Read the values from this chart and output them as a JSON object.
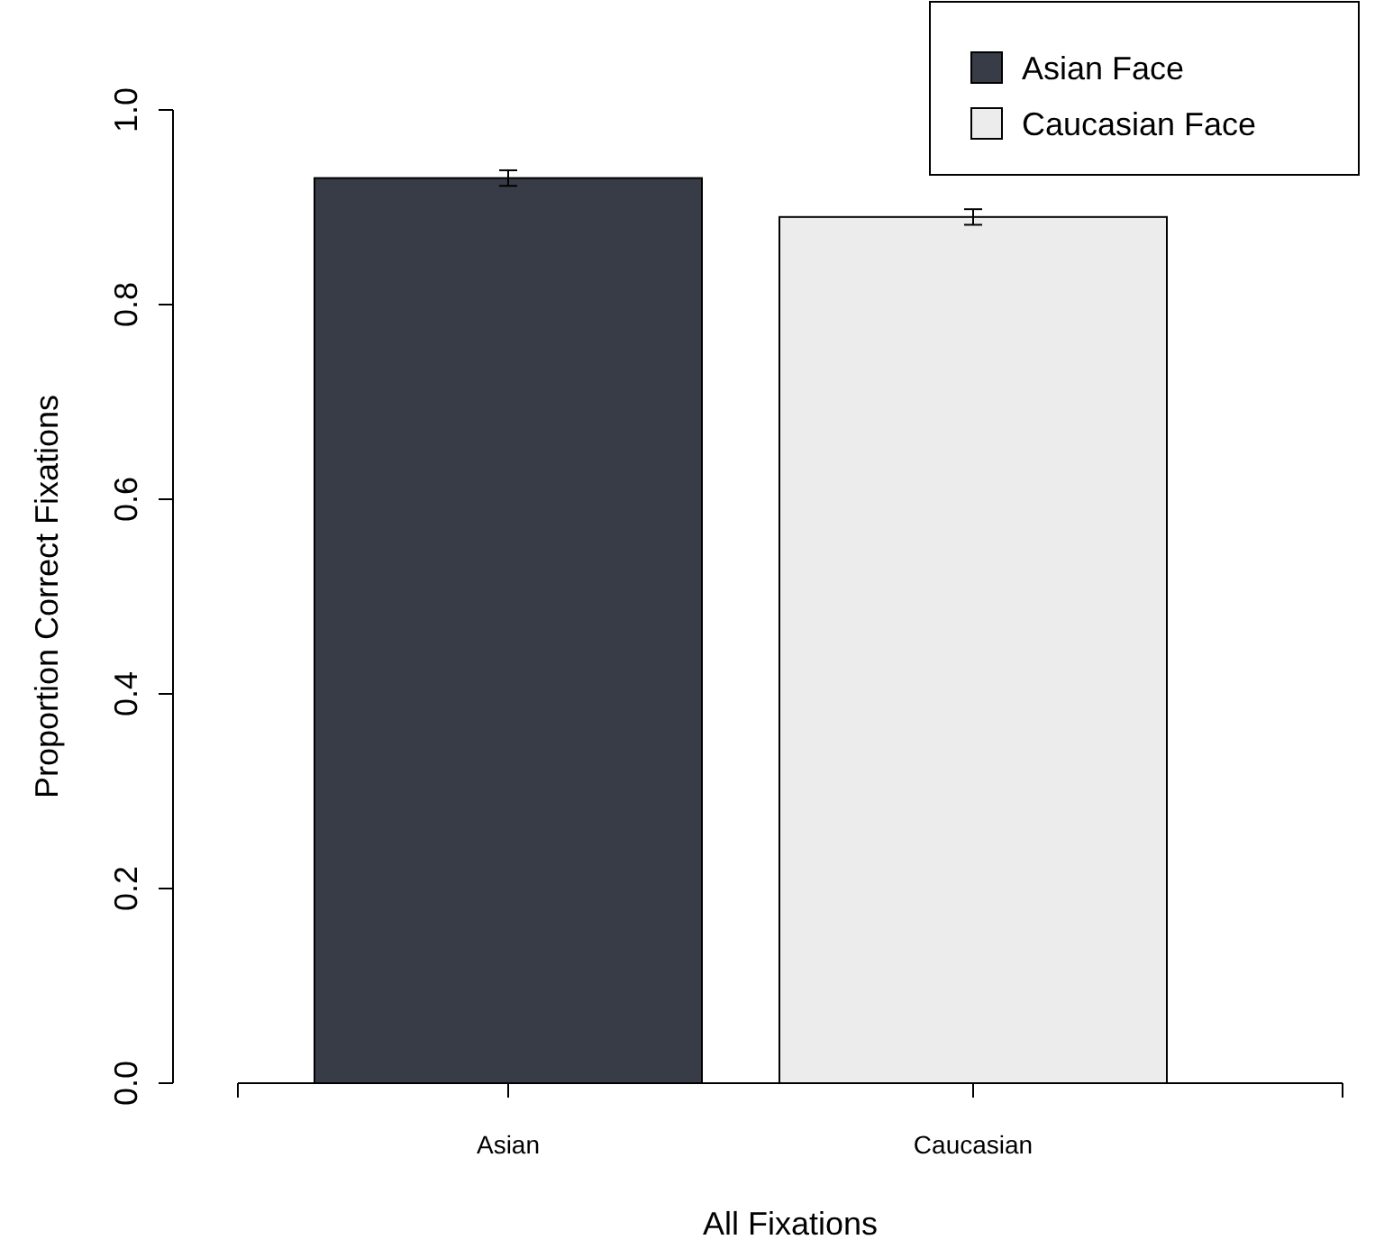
{
  "chart_data": {
    "type": "bar",
    "xlabel": "All Fixations",
    "ylabel": "Proportion Correct Fixations",
    "categories": [
      "Asian",
      "Caucasian"
    ],
    "series": [
      {
        "name": "Asian Face",
        "color": "#373c47",
        "values": [
          0.93,
          null
        ],
        "errors": [
          0.008,
          null
        ]
      },
      {
        "name": "Caucasian Face",
        "color": "#ececec",
        "values": [
          null,
          0.89
        ],
        "errors": [
          null,
          0.008
        ]
      }
    ],
    "ylim": [
      0,
      1
    ],
    "yticks": [
      {
        "value": 0,
        "label": "0.0"
      },
      {
        "value": 0.2,
        "label": "0.2"
      },
      {
        "value": 0.4,
        "label": "0.4"
      },
      {
        "value": 0.6,
        "label": "0.6"
      },
      {
        "value": 0.8,
        "label": "0.8"
      },
      {
        "value": 1,
        "label": "1.0"
      }
    ],
    "legend": "top right",
    "grid": false
  }
}
